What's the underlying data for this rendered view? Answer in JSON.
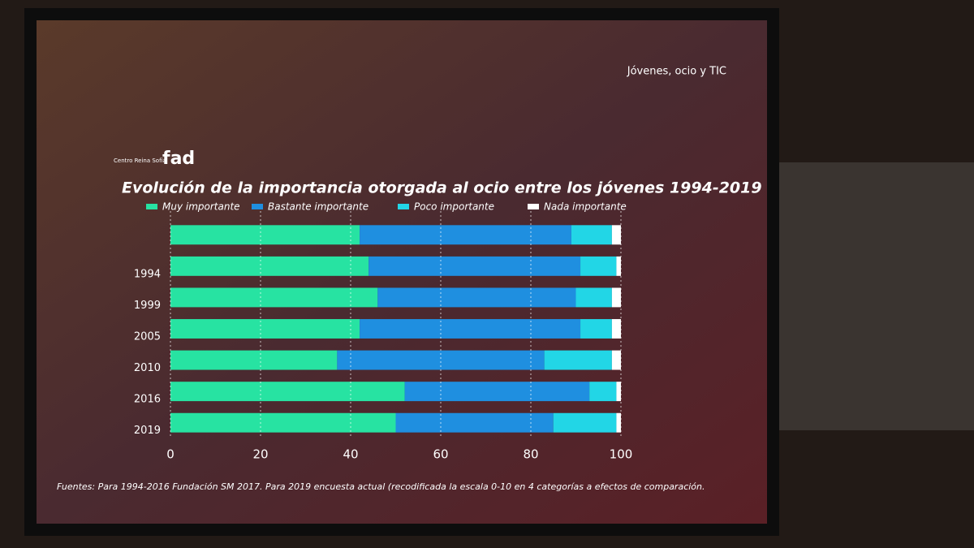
{
  "chart_data": {
    "type": "stacked-barh",
    "title": "Evolución de la importancia otorgada al ocio entre los jóvenes 1994-2019",
    "subtitle": "Jóvenes, ocio y TIC",
    "annotations": [
      "fad",
      "Centro Reina Sofía"
    ],
    "source": "Fuentes: Para 1994-2016 Fundación SM 2017. Para 2019 encuesta actual (recodificada la escala 0-10 en 4 categorías a efectos de comparación.",
    "categories": [
      null,
      "1994",
      "1999",
      "2005",
      "2010",
      "2016",
      "2019"
    ],
    "series": [
      {
        "name": "Muy importante",
        "color": "#27e3a2",
        "values": [
          42,
          44,
          46,
          42,
          37,
          52,
          50
        ]
      },
      {
        "name": "Bastante importante",
        "color": "#1f8fe0",
        "values": [
          47,
          47,
          44,
          49,
          46,
          41,
          35
        ]
      },
      {
        "name": "Poco importante",
        "color": "#22d6e6",
        "values": [
          9,
          8,
          8,
          7,
          15,
          6,
          14
        ]
      },
      {
        "name": "Nada importante",
        "color": "#ffffff",
        "values": [
          2,
          1,
          2,
          2,
          2,
          1,
          1
        ]
      }
    ],
    "xlim": [
      0,
      100
    ],
    "xticks": [
      0,
      20,
      40,
      60,
      80,
      100
    ],
    "grid": true
  }
}
